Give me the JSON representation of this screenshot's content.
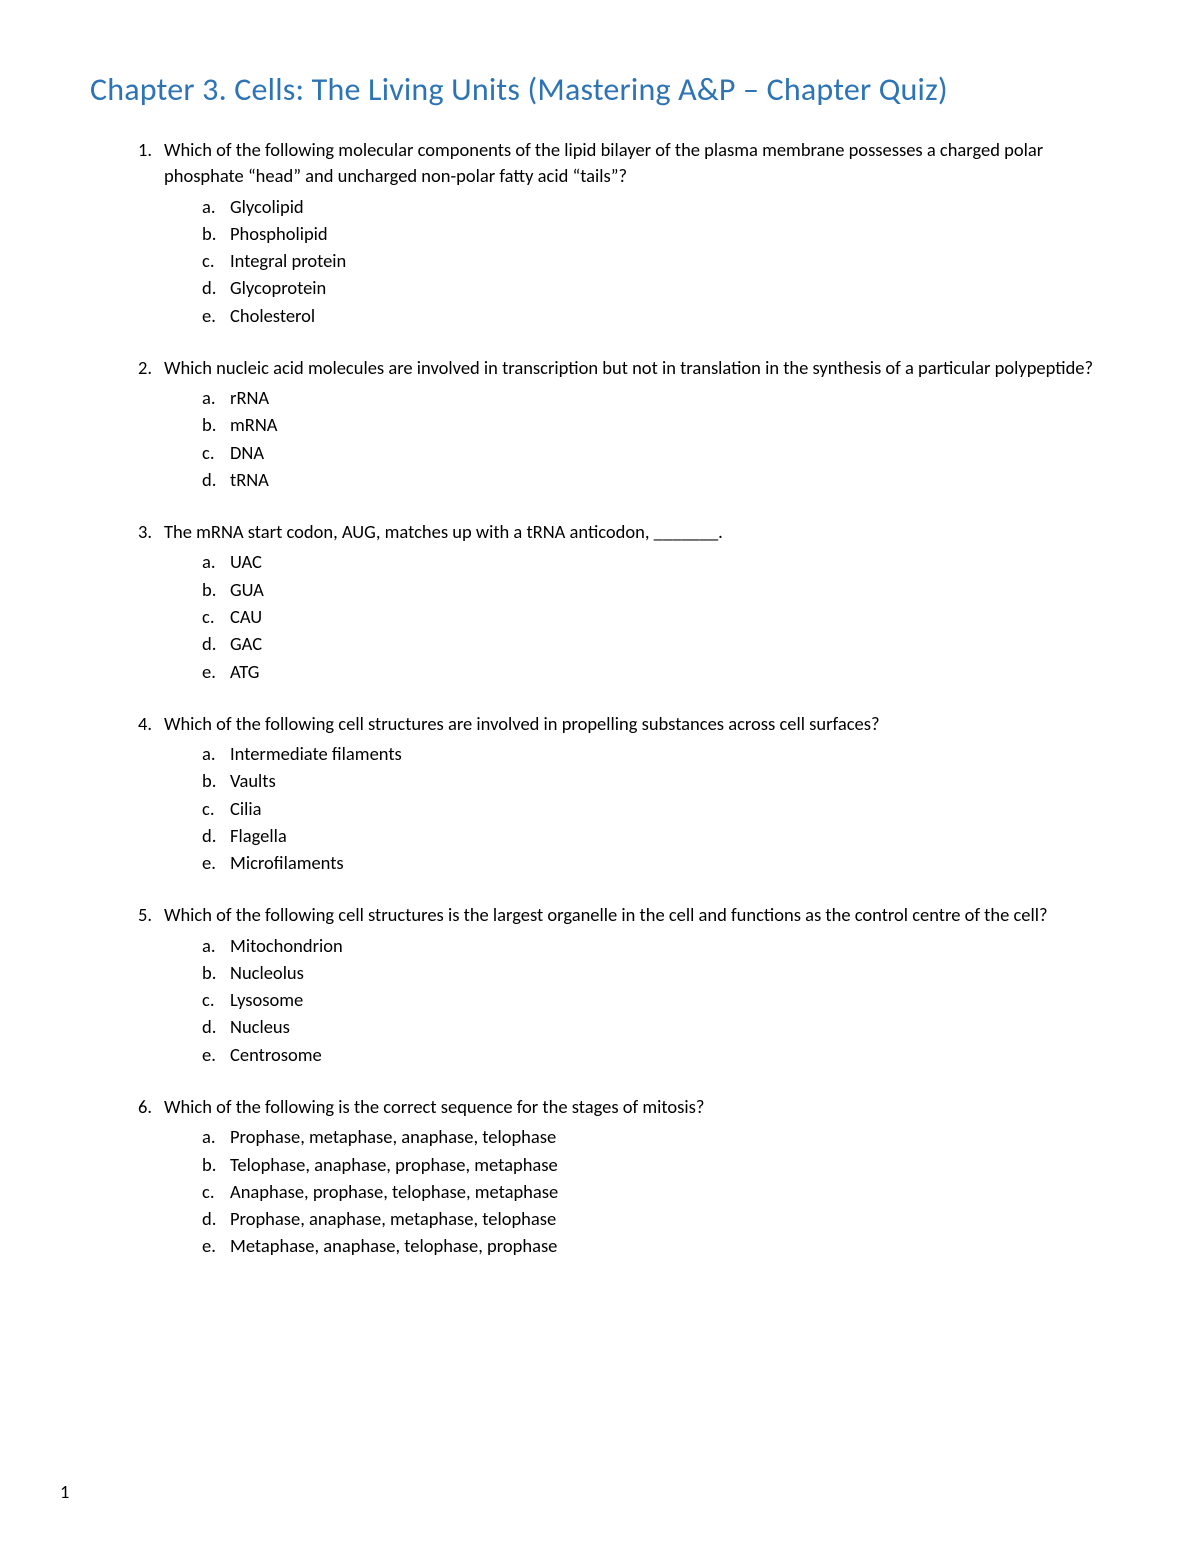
{
  "title": "Chapter 3. Cells: The Living Units (Mastering A&P – Chapter Quiz)",
  "title_color": "#2e74b5",
  "title_fontsize": 32,
  "body_fontsize": 18.5,
  "body_color": "#000000",
  "background_color": "#ffffff",
  "font_family": "Calibri",
  "page_number": "1",
  "questions": [
    {
      "number": "1.",
      "text": "Which of the following molecular components of the lipid bilayer of the plasma membrane possesses a charged polar phosphate “head” and uncharged non-polar fatty acid “tails”?",
      "options": [
        {
          "letter": "a.",
          "text": "Glycolipid"
        },
        {
          "letter": "b.",
          "text": "Phospholipid"
        },
        {
          "letter": "c.",
          "text": "Integral protein"
        },
        {
          "letter": "d.",
          "text": "Glycoprotein"
        },
        {
          "letter": "e.",
          "text": "Cholesterol"
        }
      ]
    },
    {
      "number": "2.",
      "text": "Which nucleic acid molecules are involved in transcription but not in translation in the synthesis of a particular polypeptide?",
      "options": [
        {
          "letter": "a.",
          "text": "rRNA"
        },
        {
          "letter": "b.",
          "text": "mRNA"
        },
        {
          "letter": "c.",
          "text": "DNA"
        },
        {
          "letter": "d.",
          "text": "tRNA"
        }
      ]
    },
    {
      "number": "3.",
      "text": "The mRNA start codon, AUG, matches up with a tRNA anticodon, _______.",
      "options": [
        {
          "letter": "a.",
          "text": "UAC"
        },
        {
          "letter": "b.",
          "text": "GUA"
        },
        {
          "letter": "c.",
          "text": "CAU"
        },
        {
          "letter": "d.",
          "text": "GAC"
        },
        {
          "letter": "e.",
          "text": "ATG"
        }
      ]
    },
    {
      "number": "4.",
      "text": "Which of the following cell structures are involved in propelling substances across cell surfaces?",
      "options": [
        {
          "letter": "a.",
          "text": "Intermediate filaments"
        },
        {
          "letter": "b.",
          "text": "Vaults"
        },
        {
          "letter": "c.",
          "text": "Cilia"
        },
        {
          "letter": "d.",
          "text": "Flagella"
        },
        {
          "letter": "e.",
          "text": "Microfilaments"
        }
      ]
    },
    {
      "number": "5.",
      "text": "Which of the following cell structures is the largest organelle in the cell and functions as the control centre of the cell?",
      "options": [
        {
          "letter": "a.",
          "text": "Mitochondrion"
        },
        {
          "letter": "b.",
          "text": "Nucleolus"
        },
        {
          "letter": "c.",
          "text": "Lysosome"
        },
        {
          "letter": "d.",
          "text": "Nucleus"
        },
        {
          "letter": "e.",
          "text": "Centrosome"
        }
      ]
    },
    {
      "number": "6.",
      "text": "Which of the following is the correct sequence for the stages of mitosis?",
      "options": [
        {
          "letter": "a.",
          "text": "Prophase, metaphase, anaphase, telophase"
        },
        {
          "letter": "b.",
          "text": "Telophase, anaphase, prophase, metaphase"
        },
        {
          "letter": "c.",
          "text": "Anaphase, prophase, telophase, metaphase"
        },
        {
          "letter": "d.",
          "text": "Prophase, anaphase, metaphase, telophase"
        },
        {
          "letter": "e.",
          "text": "Metaphase, anaphase, telophase, prophase"
        }
      ]
    }
  ]
}
